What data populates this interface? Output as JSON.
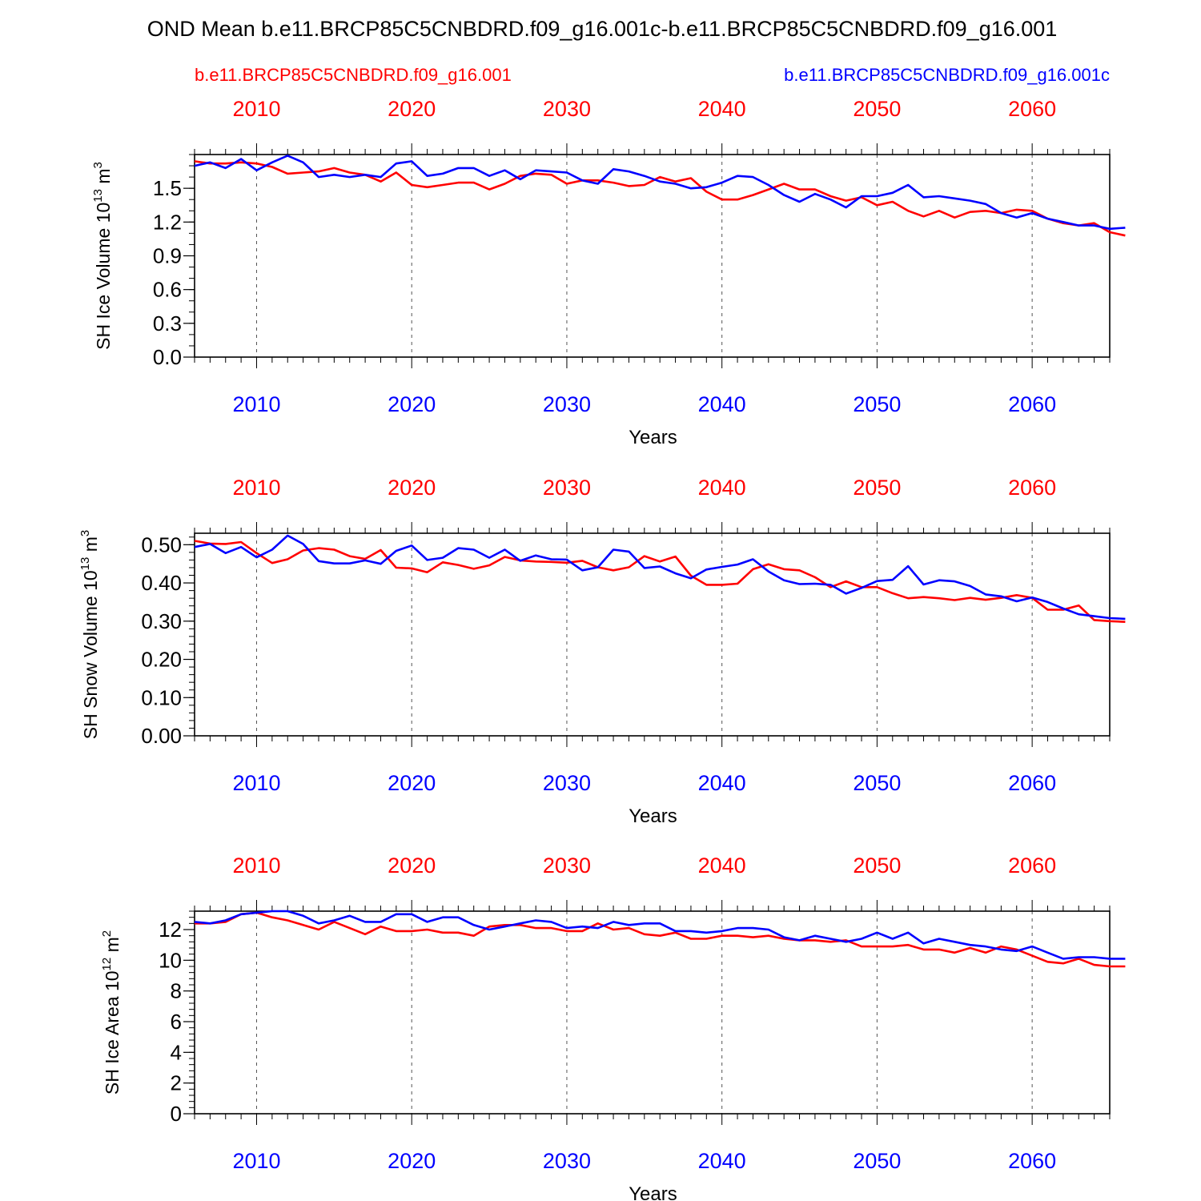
{
  "title": "OND Mean b.e11.BRCP85C5CNBDRD.f09_g16.001c-b.e11.BRCP85C5CNBDRD.f09_g16.001",
  "legend": {
    "red_case": "b.e11.BRCP85C5CNBDRD.f09_g16.001",
    "blue_case": "b.e11.BRCP85C5CNBDRD.f09_g16.001c"
  },
  "colors": {
    "red": "#ff0000",
    "blue": "#0000ff",
    "axis": "#000000",
    "grid": "#555555"
  },
  "chart_data": [
    {
      "type": "line",
      "title": "",
      "ylabel": "SH Ice Volume 10^13 m^3",
      "ylabel_main": "SH Ice Volume 10",
      "ylabel_exp": "13",
      "ylabel_unit": "m",
      "ylabel_unit_exp": "3",
      "xlabel": "Years",
      "xlim": [
        2006,
        2065
      ],
      "ylim": [
        0,
        1.8
      ],
      "yticks": [
        0.0,
        0.3,
        0.6,
        0.9,
        1.2,
        1.5
      ],
      "ytick_labels": [
        "0.0",
        "0.3",
        "0.6",
        "0.9",
        "1.2",
        "1.5"
      ],
      "yminor": 0.1,
      "xticks": [
        2010,
        2020,
        2030,
        2040,
        2050,
        2060
      ],
      "xtick_labels_top": [
        "2010",
        "2020",
        "2030",
        "2040",
        "2050",
        "2060"
      ],
      "xtick_labels_bottom": [
        "2010",
        "2020",
        "2030",
        "2040",
        "2050",
        "2060"
      ],
      "series": [
        {
          "name": "b.e11.BRCP85C5CNBDRD.f09_g16.001",
          "color": "#ff0000",
          "values": [
            1.74,
            1.72,
            1.72,
            1.73,
            1.72,
            1.69,
            1.63,
            1.64,
            1.65,
            1.68,
            1.64,
            1.62,
            1.56,
            1.64,
            1.53,
            1.51,
            1.53,
            1.55,
            1.55,
            1.49,
            1.54,
            1.61,
            1.63,
            1.62,
            1.54,
            1.57,
            1.57,
            1.55,
            1.52,
            1.53,
            1.6,
            1.56,
            1.59,
            1.47,
            1.4,
            1.4,
            1.44,
            1.49,
            1.54,
            1.49,
            1.49,
            1.43,
            1.39,
            1.42,
            1.35,
            1.38,
            1.3,
            1.25,
            1.3,
            1.24,
            1.29,
            1.3,
            1.28,
            1.31,
            1.3,
            1.23,
            1.19,
            1.17,
            1.19,
            1.11,
            1.08
          ]
        },
        {
          "name": "b.e11.BRCP85C5CNBDRD.f09_g16.001c",
          "color": "#0000ff",
          "values": [
            1.7,
            1.73,
            1.68,
            1.76,
            1.66,
            1.73,
            1.79,
            1.73,
            1.6,
            1.62,
            1.6,
            1.62,
            1.6,
            1.72,
            1.74,
            1.61,
            1.63,
            1.68,
            1.68,
            1.61,
            1.66,
            1.58,
            1.66,
            1.65,
            1.64,
            1.57,
            1.54,
            1.67,
            1.65,
            1.61,
            1.56,
            1.54,
            1.5,
            1.51,
            1.55,
            1.61,
            1.6,
            1.53,
            1.44,
            1.38,
            1.45,
            1.4,
            1.33,
            1.43,
            1.43,
            1.46,
            1.53,
            1.42,
            1.43,
            1.41,
            1.39,
            1.36,
            1.28,
            1.24,
            1.28,
            1.23,
            1.2,
            1.17,
            1.17,
            1.14,
            1.15
          ]
        }
      ]
    },
    {
      "type": "line",
      "title": "",
      "ylabel": "SH Snow Volume 10^13 m^3",
      "ylabel_main": "SH Snow Volume 10",
      "ylabel_exp": "13",
      "ylabel_unit": "m",
      "ylabel_unit_exp": "3",
      "xlabel": "Years",
      "xlim": [
        2006,
        2065
      ],
      "ylim": [
        0,
        0.53
      ],
      "yticks": [
        0.0,
        0.1,
        0.2,
        0.3,
        0.4,
        0.5
      ],
      "ytick_labels": [
        "0.00",
        "0.10",
        "0.20",
        "0.30",
        "0.40",
        "0.50"
      ],
      "yminor": 0.02,
      "xticks": [
        2010,
        2020,
        2030,
        2040,
        2050,
        2060
      ],
      "xtick_labels_top": [
        "2010",
        "2020",
        "2030",
        "2040",
        "2050",
        "2060"
      ],
      "xtick_labels_bottom": [
        "2010",
        "2020",
        "2030",
        "2040",
        "2050",
        "2060"
      ],
      "series": [
        {
          "name": "b.e11.BRCP85C5CNBDRD.f09_g16.001",
          "color": "#ff0000",
          "values": [
            0.51,
            0.503,
            0.502,
            0.507,
            0.478,
            0.452,
            0.462,
            0.485,
            0.491,
            0.487,
            0.47,
            0.463,
            0.486,
            0.44,
            0.438,
            0.428,
            0.454,
            0.447,
            0.437,
            0.446,
            0.468,
            0.459,
            0.456,
            0.455,
            0.453,
            0.458,
            0.441,
            0.433,
            0.441,
            0.47,
            0.456,
            0.469,
            0.419,
            0.395,
            0.395,
            0.398,
            0.436,
            0.449,
            0.436,
            0.433,
            0.415,
            0.389,
            0.404,
            0.389,
            0.389,
            0.373,
            0.36,
            0.363,
            0.36,
            0.355,
            0.361,
            0.356,
            0.361,
            0.368,
            0.361,
            0.33,
            0.33,
            0.341,
            0.303,
            0.3,
            0.298
          ]
        },
        {
          "name": "b.e11.BRCP85C5CNBDRD.f09_g16.001c",
          "color": "#0000ff",
          "values": [
            0.494,
            0.502,
            0.478,
            0.494,
            0.467,
            0.487,
            0.524,
            0.502,
            0.457,
            0.451,
            0.451,
            0.459,
            0.45,
            0.484,
            0.498,
            0.46,
            0.466,
            0.491,
            0.487,
            0.466,
            0.487,
            0.458,
            0.472,
            0.462,
            0.461,
            0.433,
            0.441,
            0.487,
            0.482,
            0.439,
            0.443,
            0.425,
            0.412,
            0.435,
            0.442,
            0.448,
            0.462,
            0.43,
            0.407,
            0.397,
            0.398,
            0.395,
            0.372,
            0.387,
            0.405,
            0.408,
            0.444,
            0.396,
            0.407,
            0.404,
            0.392,
            0.37,
            0.365,
            0.352,
            0.362,
            0.35,
            0.333,
            0.318,
            0.313,
            0.308,
            0.306
          ]
        }
      ]
    },
    {
      "type": "line",
      "title": "",
      "ylabel": "SH Ice Area 10^12 m^2",
      "ylabel_main": "SH Ice Area 10",
      "ylabel_exp": "12",
      "ylabel_unit": "m",
      "ylabel_unit_exp": "2",
      "xlabel": "Years",
      "xlim": [
        2006,
        2065
      ],
      "ylim": [
        0,
        13.2
      ],
      "yticks": [
        0,
        2,
        4,
        6,
        8,
        10,
        12
      ],
      "ytick_labels": [
        "0",
        "2",
        "4",
        "6",
        "8",
        "10",
        "12"
      ],
      "yminor": 0.4,
      "xticks": [
        2010,
        2020,
        2030,
        2040,
        2050,
        2060
      ],
      "xtick_labels_top": [
        "2010",
        "2020",
        "2030",
        "2040",
        "2050",
        "2060"
      ],
      "xtick_labels_bottom": [
        "2010",
        "2020",
        "2030",
        "2040",
        "2050",
        "2060"
      ],
      "series": [
        {
          "name": "b.e11.BRCP85C5CNBDRD.f09_g16.001",
          "color": "#ff0000",
          "values": [
            12.4,
            12.4,
            12.5,
            13.0,
            13.1,
            12.8,
            12.6,
            12.3,
            12.0,
            12.5,
            12.1,
            11.7,
            12.2,
            11.9,
            11.9,
            12.0,
            11.8,
            11.8,
            11.6,
            12.2,
            12.3,
            12.3,
            12.1,
            12.1,
            11.9,
            11.9,
            12.4,
            12.0,
            12.1,
            11.7,
            11.6,
            11.8,
            11.4,
            11.4,
            11.6,
            11.6,
            11.5,
            11.6,
            11.4,
            11.3,
            11.3,
            11.2,
            11.3,
            10.9,
            10.9,
            10.9,
            11.0,
            10.7,
            10.7,
            10.5,
            10.8,
            10.5,
            10.9,
            10.7,
            10.3,
            9.9,
            9.8,
            10.1,
            9.7,
            9.6,
            9.6
          ]
        },
        {
          "name": "b.e11.BRCP85C5CNBDRD.f09_g16.001c",
          "color": "#0000ff",
          "values": [
            12.5,
            12.4,
            12.6,
            13.0,
            13.1,
            13.2,
            13.2,
            12.9,
            12.4,
            12.6,
            12.9,
            12.5,
            12.5,
            13.0,
            13.0,
            12.5,
            12.8,
            12.8,
            12.3,
            12.0,
            12.2,
            12.4,
            12.6,
            12.5,
            12.1,
            12.2,
            12.1,
            12.5,
            12.3,
            12.4,
            12.4,
            11.9,
            11.9,
            11.8,
            11.9,
            12.1,
            12.1,
            12.0,
            11.5,
            11.3,
            11.6,
            11.4,
            11.2,
            11.4,
            11.8,
            11.4,
            11.8,
            11.1,
            11.4,
            11.2,
            11.0,
            10.9,
            10.7,
            10.6,
            10.9,
            10.5,
            10.1,
            10.2,
            10.2,
            10.1,
            10.1
          ]
        }
      ]
    }
  ]
}
